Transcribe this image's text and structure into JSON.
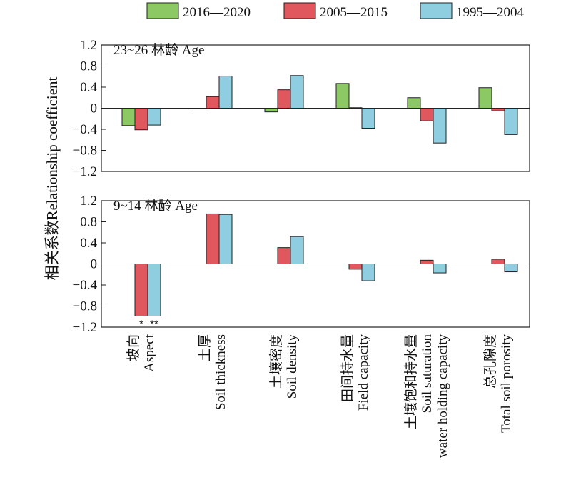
{
  "chart_data": {
    "type": "bar",
    "ylabel": "相关系数Relationship coefficient",
    "ylim": [
      -1.2,
      1.2
    ],
    "yticks": [
      1.2,
      0.8,
      0.4,
      0,
      -0.4,
      -0.8,
      -1.2
    ],
    "ytick_labels": [
      "1.2",
      "0.8",
      "0.4",
      "0",
      "−0.4",
      "−0.8",
      "−1.2"
    ],
    "legend": {
      "placement": "top-right",
      "items": [
        {
          "name": "2016—2020",
          "color": "#8cc965"
        },
        {
          "name": "2005—2015",
          "color": "#e0575d"
        },
        {
          "name": "1995—2004",
          "color": "#8fcde0"
        }
      ]
    },
    "categories": [
      {
        "lines": [
          "坡向",
          "Aspect"
        ]
      },
      {
        "lines": [
          "土厚",
          "Soil thickness"
        ]
      },
      {
        "lines": [
          "土壤密度",
          "Soil density"
        ]
      },
      {
        "lines": [
          "田间持水量",
          "Field capacity"
        ]
      },
      {
        "lines": [
          "土壤饱和持水量",
          "Soil saturation",
          "water holding capacity"
        ]
      },
      {
        "lines": [
          "总孔隙度",
          "Total soil porosity"
        ]
      }
    ],
    "panels": [
      {
        "label": "23~26 林龄 Age",
        "series": [
          {
            "name": "2016—2020",
            "values": [
              -0.33,
              -0.01,
              -0.07,
              0.47,
              0.2,
              0.39
            ]
          },
          {
            "name": "2005—2015",
            "values": [
              -0.41,
              0.22,
              0.35,
              0.01,
              -0.24,
              -0.05
            ]
          },
          {
            "name": "1995—2004",
            "values": [
              -0.32,
              0.61,
              0.62,
              -0.38,
              -0.66,
              -0.5
            ]
          }
        ],
        "annotations": []
      },
      {
        "label": "9~14 林龄 Age",
        "series": [
          {
            "name": "2005—2015",
            "values": [
              -0.99,
              0.95,
              0.31,
              -0.1,
              0.07,
              0.09
            ]
          },
          {
            "name": "1995—2004",
            "values": [
              -0.99,
              0.94,
              0.52,
              -0.32,
              -0.17,
              -0.15
            ]
          }
        ],
        "annotations": [
          {
            "category": 0,
            "series": "2005—2015",
            "text": "*"
          },
          {
            "category": 0,
            "series": "1995—2004",
            "text": "**"
          }
        ]
      }
    ]
  }
}
